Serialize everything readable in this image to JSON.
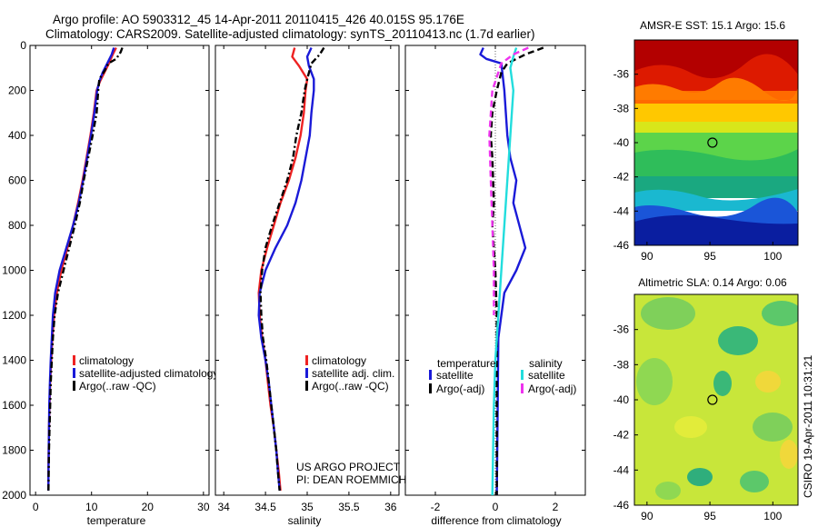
{
  "title_line1": "Argo profile: AO 5903312_45 14-Apr-2011 20110415_426 40.015S 95.176E",
  "title_line2": "Climatology: CARS2009. Satellite-adjusted climatology: synTS_20110413.nc (1.7d earlier)",
  "credit_line1": "US ARGO PROJECT",
  "credit_line2": "PI: DEAN ROEMMICH",
  "side_stamp": "CSIRO 19-Apr-2011 10:31:21",
  "colors": {
    "climatology": "#ee2222",
    "satellite": "#1a1ad8",
    "argo": "#000000",
    "sal_satellite": "#22dddd",
    "sal_argo": "#ee33ee"
  },
  "chart_data": [
    {
      "type": "line",
      "xlabel": "temperature",
      "ylabel": "",
      "xlim": [
        -1,
        31
      ],
      "ylim": [
        2000,
        0
      ],
      "xticks": [
        0,
        10,
        20,
        30
      ],
      "yticks": [
        0,
        200,
        400,
        600,
        800,
        1000,
        1200,
        1400,
        1600,
        1800,
        2000
      ],
      "legend_items": [
        "climatology",
        "satellite-adjusted climatology",
        "Argo(..raw -QC)"
      ],
      "series": [
        {
          "name": "climatology",
          "color": "#ee2222",
          "style": "solid",
          "points": [
            [
              14.4,
              10
            ],
            [
              13.8,
              40
            ],
            [
              13.1,
              80
            ],
            [
              12.3,
              120
            ],
            [
              11.5,
              160
            ],
            [
              10.9,
              200
            ],
            [
              10.4,
              300
            ],
            [
              9.8,
              400
            ],
            [
              9.1,
              500
            ],
            [
              8.4,
              600
            ],
            [
              7.6,
              700
            ],
            [
              6.7,
              800
            ],
            [
              5.7,
              900
            ],
            [
              4.6,
              1000
            ],
            [
              3.8,
              1100
            ],
            [
              3.3,
              1200
            ],
            [
              3.0,
              1300
            ],
            [
              2.8,
              1400
            ],
            [
              2.6,
              1500
            ],
            [
              2.5,
              1600
            ],
            [
              2.4,
              1700
            ],
            [
              2.35,
              1800
            ],
            [
              2.3,
              1900
            ],
            [
              2.3,
              1980
            ]
          ]
        },
        {
          "name": "satellite-adjusted climatology",
          "color": "#1a1ad8",
          "style": "solid",
          "points": [
            [
              14.0,
              10
            ],
            [
              13.6,
              40
            ],
            [
              12.8,
              80
            ],
            [
              12.0,
              120
            ],
            [
              11.4,
              160
            ],
            [
              11.0,
              200
            ],
            [
              10.5,
              300
            ],
            [
              9.9,
              400
            ],
            [
              9.2,
              500
            ],
            [
              8.5,
              600
            ],
            [
              7.7,
              700
            ],
            [
              6.7,
              800
            ],
            [
              5.5,
              900
            ],
            [
              4.3,
              1000
            ],
            [
              3.5,
              1100
            ],
            [
              3.1,
              1200
            ],
            [
              2.9,
              1300
            ],
            [
              2.7,
              1400
            ],
            [
              2.55,
              1500
            ],
            [
              2.45,
              1600
            ],
            [
              2.4,
              1700
            ],
            [
              2.35,
              1800
            ],
            [
              2.3,
              1900
            ],
            [
              2.3,
              1980
            ]
          ]
        },
        {
          "name": "Argo(..raw -QC)",
          "color": "#000000",
          "style": "dashdot",
          "points": [
            [
              15.5,
              10
            ],
            [
              15.2,
              30
            ],
            [
              14.4,
              60
            ],
            [
              13.0,
              80
            ],
            [
              12.4,
              110
            ],
            [
              11.4,
              150
            ],
            [
              11.2,
              200
            ],
            [
              10.9,
              300
            ],
            [
              10.2,
              400
            ],
            [
              9.4,
              500
            ],
            [
              8.6,
              600
            ],
            [
              7.9,
              700
            ],
            [
              7.0,
              800
            ],
            [
              6.0,
              900
            ],
            [
              5.0,
              1000
            ],
            [
              4.0,
              1100
            ],
            [
              3.4,
              1200
            ],
            [
              3.1,
              1300
            ],
            [
              2.9,
              1400
            ],
            [
              2.7,
              1500
            ],
            [
              2.6,
              1600
            ],
            [
              2.5,
              1700
            ],
            [
              2.4,
              1800
            ],
            [
              2.35,
              1900
            ],
            [
              2.3,
              1980
            ]
          ]
        }
      ]
    },
    {
      "type": "line",
      "xlabel": "salinity",
      "ylabel": "",
      "xlim": [
        33.9,
        36.1
      ],
      "ylim": [
        2000,
        0
      ],
      "xticks": [
        34,
        34.5,
        35,
        35.5,
        36
      ],
      "legend_items": [
        "climatology",
        "satellite adj. clim.",
        "Argo(..raw -QC)"
      ],
      "series": [
        {
          "name": "climatology",
          "color": "#ee2222",
          "style": "solid",
          "points": [
            [
              34.85,
              10
            ],
            [
              34.82,
              50
            ],
            [
              34.9,
              90
            ],
            [
              35.0,
              150
            ],
            [
              34.98,
              200
            ],
            [
              34.96,
              300
            ],
            [
              34.92,
              400
            ],
            [
              34.86,
              500
            ],
            [
              34.78,
              600
            ],
            [
              34.68,
              700
            ],
            [
              34.6,
              800
            ],
            [
              34.52,
              900
            ],
            [
              34.45,
              1000
            ],
            [
              34.42,
              1100
            ],
            [
              34.43,
              1200
            ],
            [
              34.46,
              1300
            ],
            [
              34.5,
              1400
            ],
            [
              34.53,
              1500
            ],
            [
              34.56,
              1600
            ],
            [
              34.6,
              1700
            ],
            [
              34.63,
              1800
            ],
            [
              34.66,
              1900
            ],
            [
              34.68,
              1980
            ]
          ]
        },
        {
          "name": "satellite adj. clim.",
          "color": "#1a1ad8",
          "style": "solid",
          "points": [
            [
              35.05,
              10
            ],
            [
              35.0,
              50
            ],
            [
              35.02,
              90
            ],
            [
              35.08,
              150
            ],
            [
              35.08,
              200
            ],
            [
              35.05,
              300
            ],
            [
              35.03,
              400
            ],
            [
              34.98,
              500
            ],
            [
              34.93,
              600
            ],
            [
              34.86,
              700
            ],
            [
              34.76,
              800
            ],
            [
              34.62,
              900
            ],
            [
              34.5,
              1000
            ],
            [
              34.43,
              1100
            ],
            [
              34.42,
              1200
            ],
            [
              34.45,
              1300
            ],
            [
              34.5,
              1400
            ],
            [
              34.54,
              1500
            ],
            [
              34.57,
              1600
            ],
            [
              34.6,
              1700
            ],
            [
              34.63,
              1800
            ],
            [
              34.65,
              1900
            ],
            [
              34.67,
              1980
            ]
          ]
        },
        {
          "name": "Argo(..raw -QC)",
          "color": "#000000",
          "style": "dashdot",
          "points": [
            [
              35.2,
              10
            ],
            [
              35.15,
              40
            ],
            [
              35.05,
              80
            ],
            [
              35.0,
              150
            ],
            [
              34.97,
              200
            ],
            [
              34.93,
              300
            ],
            [
              34.87,
              400
            ],
            [
              34.83,
              500
            ],
            [
              34.76,
              600
            ],
            [
              34.67,
              700
            ],
            [
              34.58,
              800
            ],
            [
              34.5,
              900
            ],
            [
              34.46,
              1000
            ],
            [
              34.44,
              1100
            ],
            [
              34.45,
              1200
            ],
            [
              34.47,
              1300
            ],
            [
              34.51,
              1400
            ],
            [
              34.54,
              1500
            ],
            [
              34.57,
              1600
            ],
            [
              34.6,
              1700
            ],
            [
              34.63,
              1800
            ],
            [
              34.65,
              1900
            ],
            [
              34.67,
              1980
            ]
          ]
        }
      ]
    },
    {
      "type": "line",
      "xlabel": "difference from climatology",
      "ylabel": "",
      "xlim": [
        -3,
        3
      ],
      "ylim": [
        2000,
        0
      ],
      "xticks": [
        -2,
        0,
        2
      ],
      "legend_group_left_title": "temperature",
      "legend_group_right_title": "salinity",
      "legend_items": [
        "satellite",
        "Argo(-adj)",
        "satellite",
        "Argo(-adj)"
      ],
      "series": [
        {
          "name": "temperature satellite",
          "color": "#1a1ad8",
          "style": "solid",
          "points": [
            [
              -0.4,
              10
            ],
            [
              -0.5,
              40
            ],
            [
              -0.3,
              60
            ],
            [
              0.2,
              80
            ],
            [
              0.3,
              200
            ],
            [
              0.4,
              400
            ],
            [
              0.5,
              500
            ],
            [
              0.7,
              600
            ],
            [
              0.6,
              700
            ],
            [
              0.8,
              800
            ],
            [
              1.0,
              900
            ],
            [
              0.7,
              1000
            ],
            [
              0.3,
              1100
            ],
            [
              0.1,
              1300
            ],
            [
              0.08,
              1600
            ],
            [
              0.05,
              2000
            ]
          ]
        },
        {
          "name": "temperature Argo(-adj)",
          "color": "#000000",
          "style": "dashed",
          "points": [
            [
              1.6,
              10
            ],
            [
              1.0,
              40
            ],
            [
              0.4,
              80
            ],
            [
              0.2,
              120
            ],
            [
              0.05,
              200
            ],
            [
              -0.1,
              300
            ],
            [
              -0.15,
              400
            ],
            [
              -0.1,
              500
            ],
            [
              -0.05,
              700
            ],
            [
              -0.1,
              800
            ],
            [
              0.0,
              1000
            ],
            [
              0.05,
              1200
            ],
            [
              0.05,
              1600
            ],
            [
              0.05,
              2000
            ]
          ]
        },
        {
          "name": "salinity satellite",
          "color": "#22dddd",
          "style": "solid",
          "points": [
            [
              0.7,
              10
            ],
            [
              0.6,
              50
            ],
            [
              0.5,
              100
            ],
            [
              0.6,
              200
            ],
            [
              0.5,
              400
            ],
            [
              0.4,
              600
            ],
            [
              0.3,
              800
            ],
            [
              0.2,
              1000
            ],
            [
              0.1,
              1200
            ],
            [
              0.0,
              1400
            ],
            [
              -0.05,
              1600
            ],
            [
              -0.1,
              2000
            ]
          ]
        },
        {
          "name": "salinity Argo(-adj)",
          "color": "#ee33ee",
          "style": "dashed",
          "points": [
            [
              1.1,
              10
            ],
            [
              0.6,
              40
            ],
            [
              0.2,
              80
            ],
            [
              -0.1,
              200
            ],
            [
              -0.2,
              400
            ],
            [
              -0.15,
              600
            ],
            [
              -0.1,
              800
            ],
            [
              -0.05,
              1000
            ],
            [
              -0.05,
              1200
            ]
          ]
        }
      ]
    },
    {
      "type": "heatmap",
      "title": "AMSR-E SST: 15.1 Argo: 15.6",
      "xlim": [
        89,
        102
      ],
      "ylim": [
        -46,
        -34
      ],
      "xticks": [
        90,
        95,
        100
      ],
      "yticks": [
        -36,
        -38,
        -40,
        -42,
        -44,
        -46
      ],
      "marker": {
        "lon": 95.2,
        "lat": -40.0
      }
    },
    {
      "type": "heatmap",
      "title": "Altimetric SLA: 0.14 Argo: 0.06",
      "xlim": [
        89,
        102
      ],
      "ylim": [
        -46,
        -34
      ],
      "xticks": [
        90,
        95,
        100
      ],
      "yticks": [
        -36,
        -38,
        -40,
        -42,
        -44,
        -46
      ],
      "marker": {
        "lon": 95.2,
        "lat": -40.0
      }
    }
  ]
}
